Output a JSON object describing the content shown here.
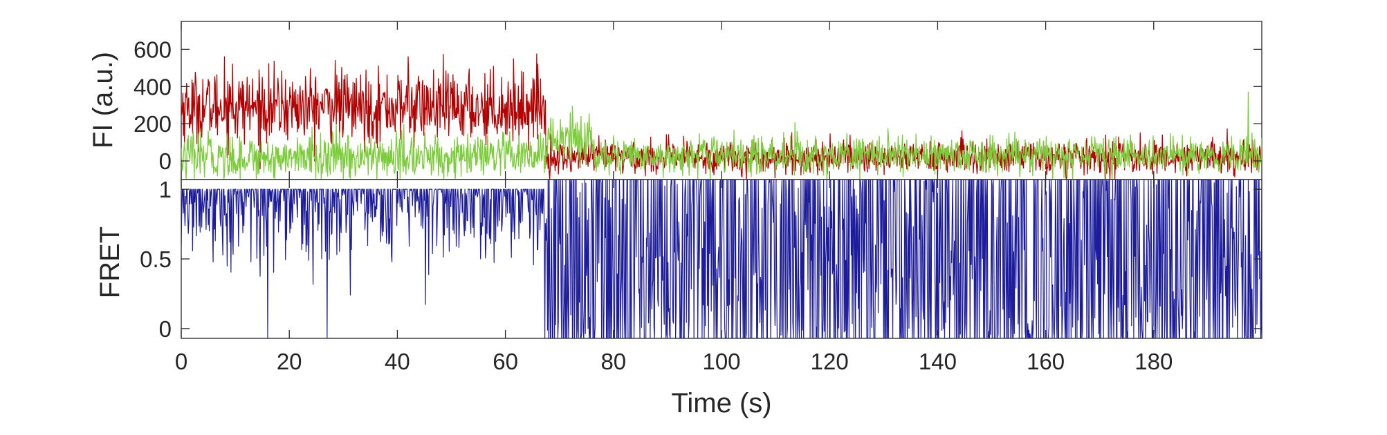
{
  "chart_data": [
    {
      "type": "line",
      "title": "",
      "xlabel": "",
      "ylabel": "FI (a.u.)",
      "xlim": [
        0,
        200
      ],
      "ylim": [
        -100,
        750
      ],
      "xticks": [
        0,
        20,
        40,
        60,
        80,
        100,
        120,
        140,
        160,
        180
      ],
      "yticks": [
        0,
        200,
        400,
        600
      ],
      "yticklabels": [
        "0",
        "200",
        "400",
        "600"
      ],
      "grid": false,
      "legend": "none",
      "series": [
        {
          "color": "#b30000",
          "segments": [
            {
              "x": [
                0,
                67.5
              ],
              "mean": 290,
              "noise": 95
            },
            {
              "x": [
                67.5,
                200
              ],
              "mean": 20,
              "noise": 45
            }
          ],
          "spikes": [
            [
              8,
              560
            ],
            [
              9.5,
              520
            ],
            [
              28.5,
              540
            ],
            [
              42,
              560
            ],
            [
              66,
              520
            ]
          ]
        },
        {
          "color": "#7ccc3c",
          "segments": [
            {
              "x": [
                0,
                67.5
              ],
              "mean": 20,
              "noise": 60
            },
            {
              "x": [
                67.5,
                76
              ],
              "mean": 120,
              "noise": 70
            },
            {
              "x": [
                76,
                200
              ],
              "mean": 30,
              "noise": 50
            }
          ],
          "spikes": [
            [
              5,
              160
            ],
            [
              72,
              260
            ],
            [
              74,
              240
            ],
            [
              197.5,
              370
            ]
          ]
        }
      ]
    },
    {
      "type": "line",
      "title": "",
      "xlabel": "Time (s)",
      "ylabel": "FRET",
      "xlim": [
        0,
        200
      ],
      "ylim": [
        -0.07,
        1.07
      ],
      "xticks": [
        0,
        20,
        40,
        60,
        80,
        100,
        120,
        140,
        160,
        180
      ],
      "xticklabels": [
        "0",
        "20",
        "40",
        "60",
        "80",
        "100",
        "120",
        "140",
        "160",
        "180"
      ],
      "yticks": [
        0,
        0.5,
        1
      ],
      "yticklabels": [
        "0",
        "0.5",
        "1"
      ],
      "grid": false,
      "legend": "none",
      "series": [
        {
          "color": "#1c1c9c",
          "segments": [
            {
              "x": [
                0,
                67.5
              ],
              "pattern": "high",
              "base": 1.0,
              "dip": 0.25
            },
            {
              "x": [
                67.5,
                200
              ],
              "pattern": "switching",
              "low": -0.07,
              "high": 1.07
            }
          ],
          "spikes": [
            [
              16,
              -0.07
            ],
            [
              27,
              -0.07
            ],
            [
              67.3,
              -0.07
            ]
          ]
        }
      ]
    }
  ]
}
